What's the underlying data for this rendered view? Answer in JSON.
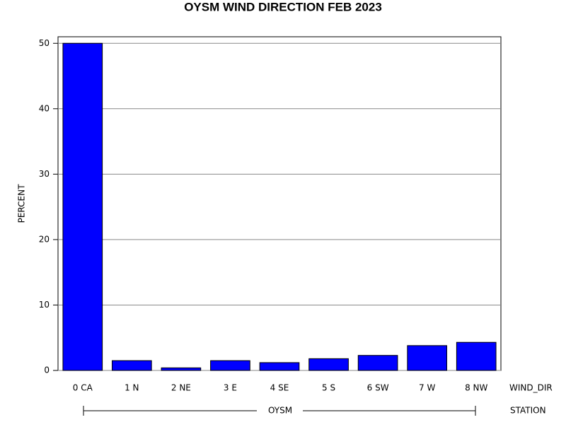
{
  "chart_data": {
    "type": "bar",
    "title": "OYSM WIND DIRECTION FEB 2023",
    "y_label": "PERCENT",
    "x_label": "WIND_DIR",
    "group_label": "OYSM",
    "group_axis_label": "STATION",
    "categories": [
      "0 CA",
      "1 N",
      "2 NE",
      "3 E",
      "4 SE",
      "5 S",
      "6 SW",
      "7 W",
      "8 NW"
    ],
    "values": [
      50,
      1.5,
      0.4,
      1.5,
      1.2,
      1.8,
      2.3,
      3.8,
      4.3
    ],
    "color": "#0000ff",
    "ylim": [
      0,
      51
    ],
    "yticks": [
      0,
      10,
      20,
      30,
      40,
      50
    ],
    "grid": true
  }
}
